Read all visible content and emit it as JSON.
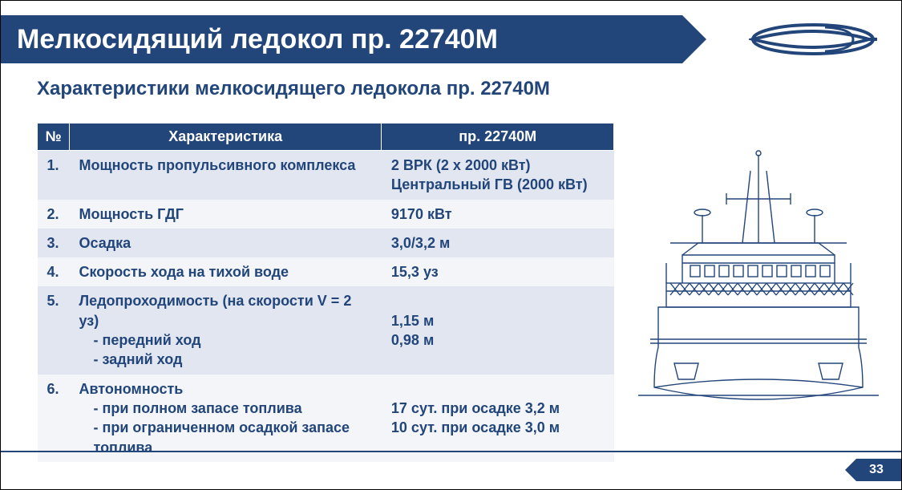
{
  "colors": {
    "brand": "#22457a",
    "row_odd": "#e1e6f0",
    "row_even": "#f3f5f9",
    "white": "#ffffff"
  },
  "title": "Мелкосидящий ледокол пр. 22740М",
  "subtitle": "Характеристики мелкосидящего ледокола пр. 22740М",
  "page_number": "33",
  "table": {
    "headers": {
      "num": "№",
      "char": "Характеристика",
      "val": "пр. 22740М"
    },
    "rows": [
      {
        "num": "1.",
        "char_lines": [
          "Мощность пропульсивного комплекса"
        ],
        "val_lines": [
          "2 ВРК (2 х 2000 кВт)",
          "Центральный ГВ (2000 кВт)"
        ]
      },
      {
        "num": "2.",
        "char_lines": [
          "Мощность ГДГ"
        ],
        "val_lines": [
          "9170 кВт"
        ]
      },
      {
        "num": "3.",
        "char_lines": [
          "Осадка"
        ],
        "val_lines": [
          "3,0/3,2 м"
        ]
      },
      {
        "num": "4.",
        "char_lines": [
          "Скорость хода на тихой воде"
        ],
        "val_lines": [
          "15,3 уз"
        ]
      },
      {
        "num": "5.",
        "char_lines": [
          "Ледопроходимость (на скорости V = 2 уз)"
        ],
        "char_sub": [
          "передний ход",
          "задний ход"
        ],
        "val_lines": [
          "",
          "1,15 м",
          "0,98 м"
        ]
      },
      {
        "num": "6.",
        "char_lines": [
          "Автономность"
        ],
        "char_sub": [
          "при полном запасе топлива",
          "при ограниченном осадкой запасе топлива"
        ],
        "val_lines": [
          "",
          "17 сут. при осадке 3,2 м",
          "10 сут. при осадке 3,0 м"
        ]
      }
    ]
  },
  "ship_drawing": {
    "stroke": "#22457a",
    "stroke_width": 1.4
  }
}
